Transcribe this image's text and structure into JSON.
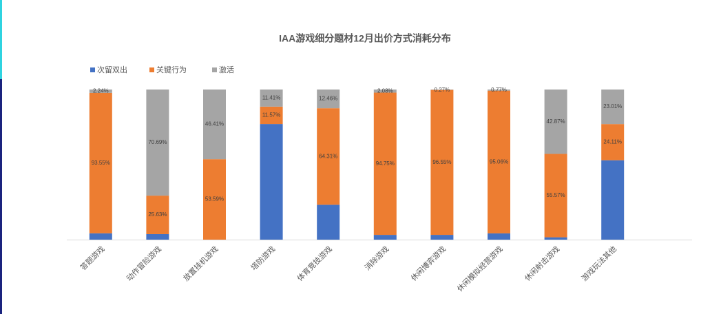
{
  "chart_data": {
    "type": "stacked_bar",
    "title": "IAA游戏细分题材12月出价方式消耗分布",
    "categories": [
      "答题游戏",
      "动作冒险游戏",
      "放置挂机游戏",
      "塔防游戏",
      "体育竞技游戏",
      "消除游戏",
      "休闲博弈游戏",
      "休闲模拟经营游戏",
      "休闲射击游戏",
      "游戏玩法其他"
    ],
    "ylim": [
      0,
      100
    ],
    "series": [
      {
        "name": "次留双出",
        "color": "#4472c4",
        "values": [
          4.21,
          3.68,
          0,
          77.02,
          23.23,
          3.17,
          3.18,
          4.17,
          1.56,
          52.88
        ]
      },
      {
        "name": "关键行为",
        "color": "#ed7d31",
        "values": [
          93.55,
          25.63,
          53.59,
          11.57,
          64.31,
          94.75,
          96.55,
          95.06,
          55.57,
          24.11
        ],
        "value_labels": [
          "93.55%",
          "25.63%",
          "53.59%",
          "11.57%",
          "64.31%",
          "94.75%",
          "96.55%",
          "95.06%",
          "55.57%",
          "24.11%"
        ]
      },
      {
        "name": "激活",
        "color": "#a5a5a5",
        "values": [
          2.24,
          70.69,
          46.41,
          11.41,
          12.46,
          2.08,
          0.27,
          0.77,
          42.87,
          23.01
        ],
        "value_labels": [
          "2.24%",
          "70.69%",
          "46.41%",
          "11.41%",
          "12.46%",
          "2.08%",
          "0.27%",
          "0.77%",
          "42.87%",
          "23.01%"
        ]
      }
    ]
  }
}
